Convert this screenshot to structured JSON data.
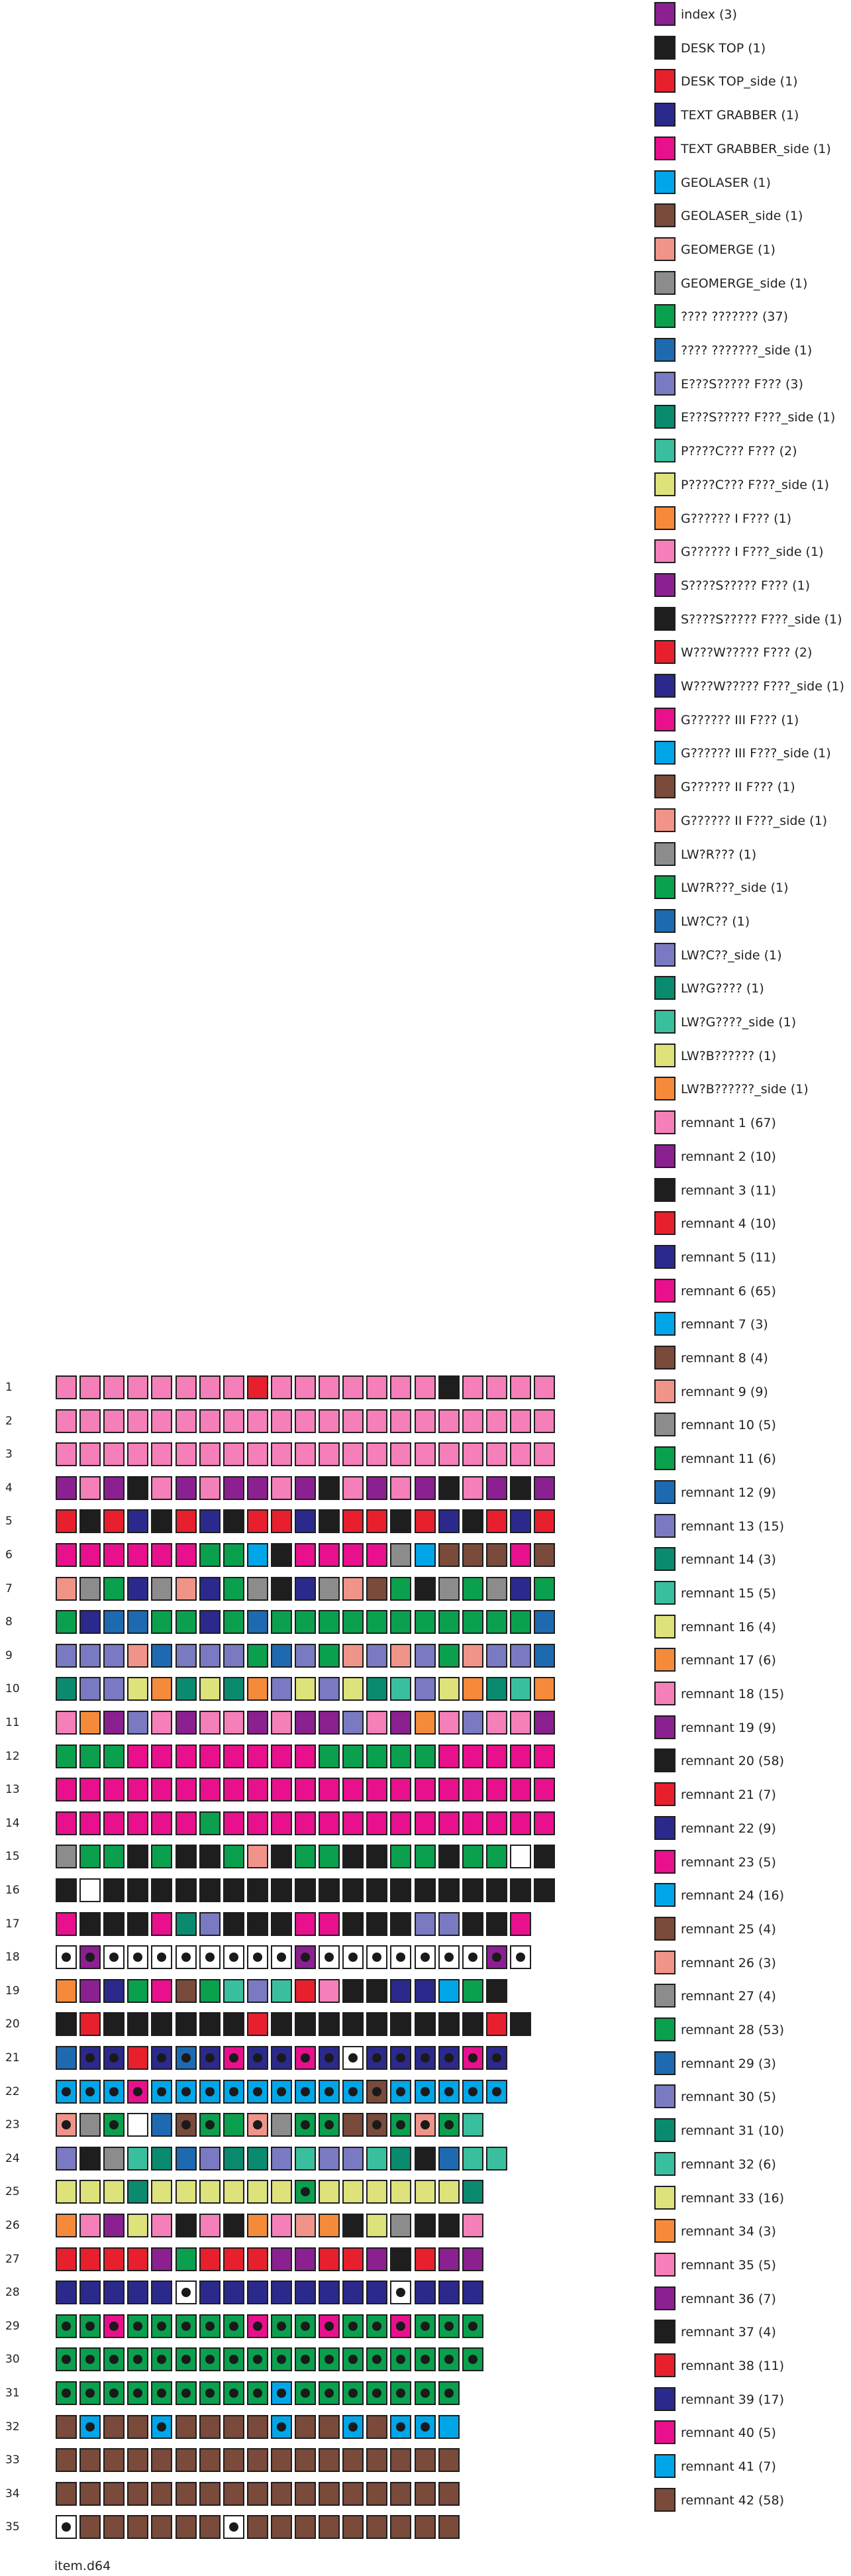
{
  "title": "item.d64",
  "palette": {
    "P": "#f57fb8",
    "U": "#8b2090",
    "K": "#1e1e1e",
    "R": "#e8202e",
    "N": "#2b2a8c",
    "M": "#e8108c",
    "C": "#00a6e8",
    "B": "#7a4a3a",
    "S": "#f0948a",
    "G": "#8c8c8c",
    "E": "#0aa04e",
    "L": "#1e6ab0",
    "V": "#7a7ac2",
    "T": "#0a8a6e",
    "Q": "#3abf9e",
    "Y": "#dde27a",
    "O": "#f58a3a",
    "W": "#ffffff"
  },
  "legend": [
    {
      "label": "index (3)",
      "color": "#8b2090"
    },
    {
      "label": "DESK TOP (1)",
      "color": "#1e1e1e"
    },
    {
      "label": "DESK TOP_side (1)",
      "color": "#e8202e"
    },
    {
      "label": "TEXT GRABBER (1)",
      "color": "#2b2a8c"
    },
    {
      "label": "TEXT GRABBER_side (1)",
      "color": "#e8108c"
    },
    {
      "label": "GEOLASER (1)",
      "color": "#00a6e8"
    },
    {
      "label": "GEOLASER_side (1)",
      "color": "#7a4a3a"
    },
    {
      "label": "GEOMERGE (1)",
      "color": "#f0948a"
    },
    {
      "label": "GEOMERGE_side (1)",
      "color": "#8c8c8c"
    },
    {
      "label": "????  ??????? (37)",
      "color": "#0aa04e"
    },
    {
      "label": "????  ???????_side (1)",
      "color": "#1e6ab0"
    },
    {
      "label": "E???S????? F??? (3)",
      "color": "#7a7ac2"
    },
    {
      "label": "E???S????? F???_side (1)",
      "color": "#0a8a6e"
    },
    {
      "label": "P????C??? F??? (2)",
      "color": "#3abf9e"
    },
    {
      "label": "P????C??? F???_side (1)",
      "color": "#dde27a"
    },
    {
      "label": "G?????? I F??? (1)",
      "color": "#f58a3a"
    },
    {
      "label": "G?????? I F???_side (1)",
      "color": "#f57fb8"
    },
    {
      "label": "S????S????? F??? (1)",
      "color": "#8b2090"
    },
    {
      "label": "S????S????? F???_side (1)",
      "color": "#1e1e1e"
    },
    {
      "label": "W???W????? F??? (2)",
      "color": "#e8202e"
    },
    {
      "label": "W???W????? F???_side (1)",
      "color": "#2b2a8c"
    },
    {
      "label": "G?????? III F??? (1)",
      "color": "#e8108c"
    },
    {
      "label": "G?????? III F???_side (1)",
      "color": "#00a6e8"
    },
    {
      "label": "G?????? II F??? (1)",
      "color": "#7a4a3a"
    },
    {
      "label": "G?????? II F???_side (1)",
      "color": "#f0948a"
    },
    {
      "label": "LW?R??? (1)",
      "color": "#8c8c8c"
    },
    {
      "label": "LW?R???_side (1)",
      "color": "#0aa04e"
    },
    {
      "label": "LW?C?? (1)",
      "color": "#1e6ab0"
    },
    {
      "label": "LW?C??_side (1)",
      "color": "#7a7ac2"
    },
    {
      "label": "LW?G???? (1)",
      "color": "#0a8a6e"
    },
    {
      "label": "LW?G????_side (1)",
      "color": "#3abf9e"
    },
    {
      "label": "LW?B?????? (1)",
      "color": "#dde27a"
    },
    {
      "label": "LW?B??????_side (1)",
      "color": "#f58a3a"
    },
    {
      "label": "remnant 1 (67)",
      "color": "#f57fb8"
    },
    {
      "label": "remnant 2 (10)",
      "color": "#8b2090"
    },
    {
      "label": "remnant 3 (11)",
      "color": "#1e1e1e"
    },
    {
      "label": "remnant 4 (10)",
      "color": "#e8202e"
    },
    {
      "label": "remnant 5 (11)",
      "color": "#2b2a8c"
    },
    {
      "label": "remnant 6 (65)",
      "color": "#e8108c"
    },
    {
      "label": "remnant 7 (3)",
      "color": "#00a6e8"
    },
    {
      "label": "remnant 8 (4)",
      "color": "#7a4a3a"
    },
    {
      "label": "remnant 9 (9)",
      "color": "#f0948a"
    },
    {
      "label": "remnant 10 (5)",
      "color": "#8c8c8c"
    },
    {
      "label": "remnant 11 (6)",
      "color": "#0aa04e"
    },
    {
      "label": "remnant 12 (9)",
      "color": "#1e6ab0"
    },
    {
      "label": "remnant 13 (15)",
      "color": "#7a7ac2"
    },
    {
      "label": "remnant 14 (3)",
      "color": "#0a8a6e"
    },
    {
      "label": "remnant 15 (5)",
      "color": "#3abf9e"
    },
    {
      "label": "remnant 16 (4)",
      "color": "#dde27a"
    },
    {
      "label": "remnant 17 (6)",
      "color": "#f58a3a"
    },
    {
      "label": "remnant 18 (15)",
      "color": "#f57fb8"
    },
    {
      "label": "remnant 19 (9)",
      "color": "#8b2090"
    },
    {
      "label": "remnant 20 (58)",
      "color": "#1e1e1e"
    },
    {
      "label": "remnant 21 (7)",
      "color": "#e8202e"
    },
    {
      "label": "remnant 22 (9)",
      "color": "#2b2a8c"
    },
    {
      "label": "remnant 23 (5)",
      "color": "#e8108c"
    },
    {
      "label": "remnant 24 (16)",
      "color": "#00a6e8"
    },
    {
      "label": "remnant 25 (4)",
      "color": "#7a4a3a"
    },
    {
      "label": "remnant 26 (3)",
      "color": "#f0948a"
    },
    {
      "label": "remnant 27 (4)",
      "color": "#8c8c8c"
    },
    {
      "label": "remnant 28 (53)",
      "color": "#0aa04e"
    },
    {
      "label": "remnant 29 (3)",
      "color": "#1e6ab0"
    },
    {
      "label": "remnant 30 (5)",
      "color": "#7a7ac2"
    },
    {
      "label": "remnant 31 (10)",
      "color": "#0a8a6e"
    },
    {
      "label": "remnant 32 (6)",
      "color": "#3abf9e"
    },
    {
      "label": "remnant 33 (16)",
      "color": "#dde27a"
    },
    {
      "label": "remnant 34 (3)",
      "color": "#f58a3a"
    },
    {
      "label": "remnant 35 (5)",
      "color": "#f57fb8"
    },
    {
      "label": "remnant 36 (7)",
      "color": "#8b2090"
    },
    {
      "label": "remnant 37 (4)",
      "color": "#1e1e1e"
    },
    {
      "label": "remnant 38 (11)",
      "color": "#e8202e"
    },
    {
      "label": "remnant 39 (17)",
      "color": "#2b2a8c"
    },
    {
      "label": "remnant 40 (5)",
      "color": "#e8108c"
    },
    {
      "label": "remnant 41 (7)",
      "color": "#00a6e8"
    },
    {
      "label": "remnant 42 (58)",
      "color": "#7a4a3a"
    }
  ],
  "disk_map": [
    {
      "track": "1",
      "cells": "PPPPPPPPRPPPPPPPKPPPP"
    },
    {
      "track": "2",
      "cells": "PPPPPPPPPPPPPPPPPPPPP"
    },
    {
      "track": "3",
      "cells": "PPPPPPPPPPPPPPPPPPPPP"
    },
    {
      "track": "4",
      "cells": "UPUKPUPUUPUKPUPUKPUKU"
    },
    {
      "track": "5",
      "cells": "RKRNKRNKRRNKRRKRNKRNR"
    },
    {
      "track": "6",
      "cells": "MMMMMMEECKMMMMGCBBBMB"
    },
    {
      "track": "7",
      "cells": "SGENGSNEGKNGSBEKGEGNE"
    },
    {
      "track": "8",
      "cells": "ENLLEENELEEEEEEEEEEEL"
    },
    {
      "track": "9",
      "cells": "VVVSLVVVELVESVSVESVVL"
    },
    {
      "track": "10",
      "cells": "TVVYOTYTOVYVYTQVYOTQO"
    },
    {
      "track": "11",
      "cells": "POUVPUPPUPUUVPUOPVPPU"
    },
    {
      "track": "12",
      "cells": "EEEMMMMMMMMEEEEEMMMMM"
    },
    {
      "track": "13",
      "cells": "MMMMMMMMMMMMMMMMMMMMM"
    },
    {
      "track": "14",
      "cells": "MMMMMMEMMMMMMMMMMMMMM"
    },
    {
      "track": "15",
      "cells": "GEEKEKKESKEEKKEEKEEWK"
    },
    {
      "track": "16",
      "cells": "KWKKKKKKKKKKKKKKKKKKK"
    },
    {
      "track": "17",
      "cells": "MKKKMTVKKKMMKKKVVKKM"
    },
    {
      "track": "18",
      "cells": "WUWWWWWWWWUWWWWWWWUW"
    },
    {
      "track": "19",
      "cells": "OUNEMBEQVQRPKKNNCEK"
    },
    {
      "track": "20",
      "cells": "KRKKKKKKRKKKKKKKKKRK"
    },
    {
      "track": "21",
      "cells": "LNNRNLNMNNMNWNNNNMN"
    },
    {
      "track": "22",
      "cells": "CCCMCCCCCCCCCBCCCCC"
    },
    {
      "track": "23",
      "cells": "SGEWLBEESGEEBBESEQ"
    },
    {
      "track": "24",
      "cells": "VKGQTLVTTVQVVQTKLQQ"
    },
    {
      "track": "25",
      "cells": "YYYTYYYYYYEYYYYYYT"
    },
    {
      "track": "26",
      "cells": "OPUYPKPKOPSOKYGKKP"
    },
    {
      "track": "27",
      "cells": "RRRRUERRRUURRUKRUU"
    },
    {
      "track": "28",
      "cells": "NNNNNWNNNNNNNNWNNN"
    },
    {
      "track": "29",
      "cells": "EEMEEEEEMEEMEEMEEE"
    },
    {
      "track": "30",
      "cells": "EEEEEEEEEEEEEEEEEE"
    },
    {
      "track": "31",
      "cells": "EEEEEEEEECEEEEEEE"
    },
    {
      "track": "32",
      "cells": "BCBBCBBBBCBBCBCCC"
    },
    {
      "track": "33",
      "cells": "BBBBBBBBBBBBBBBBB"
    },
    {
      "track": "34",
      "cells": "BBBBBBBBBBBBBBBBB"
    },
    {
      "track": "35",
      "cells": "WBBBBBBWBBBBBBBBB"
    }
  ],
  "dot_tracks": {
    "18": "all",
    "21": [
      1,
      2,
      4,
      5,
      6,
      7,
      8,
      9,
      10,
      11,
      12,
      13,
      14,
      15,
      16,
      17,
      18
    ],
    "22": "all",
    "23": [
      0,
      2,
      5,
      6,
      8,
      10,
      11,
      13,
      14,
      15,
      16
    ],
    "25": [
      10
    ],
    "28": [
      5,
      14
    ],
    "29": "all",
    "30": "all",
    "31": "all",
    "32": [
      1,
      4,
      9,
      12,
      14,
      15
    ],
    "35": [
      0,
      7
    ]
  }
}
